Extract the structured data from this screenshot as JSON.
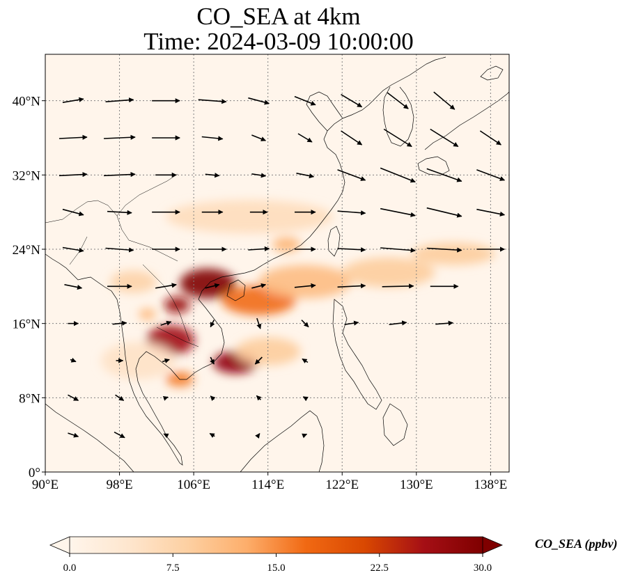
{
  "title": {
    "line1": "CO_SEA at 4km",
    "line2": "Time: 2024-03-09 10:00:00"
  },
  "map": {
    "lon_range": [
      90,
      140
    ],
    "lat_range": [
      0,
      45
    ],
    "x_ticks": [
      {
        "value": 90,
        "label": "90°E"
      },
      {
        "value": 98,
        "label": "98°E"
      },
      {
        "value": 106,
        "label": "106°E"
      },
      {
        "value": 114,
        "label": "114°E"
      },
      {
        "value": 122,
        "label": "122°E"
      },
      {
        "value": 130,
        "label": "130°E"
      },
      {
        "value": 138,
        "label": "138°E"
      }
    ],
    "y_ticks": [
      {
        "value": 0,
        "label": "0°"
      },
      {
        "value": 8,
        "label": "8°N"
      },
      {
        "value": 16,
        "label": "16°N"
      },
      {
        "value": 24,
        "label": "24°N"
      },
      {
        "value": 32,
        "label": "32°N"
      },
      {
        "value": 40,
        "label": "40°N"
      }
    ],
    "gridlines": true,
    "field_variable": "CO_SEA",
    "plumes": [
      {
        "lon": 107.5,
        "lat": 20.3,
        "value": 30,
        "rlon": 3.0,
        "rlat": 1.6
      },
      {
        "lon": 104.2,
        "lat": 18.0,
        "value": 27,
        "rlon": 1.4,
        "rlat": 0.9
      },
      {
        "lon": 103.5,
        "lat": 14.2,
        "value": 26,
        "rlon": 2.6,
        "rlat": 1.6
      },
      {
        "lon": 110.5,
        "lat": 11.8,
        "value": 28,
        "rlon": 2.4,
        "rlat": 1.2
      },
      {
        "lon": 113.0,
        "lat": 18.5,
        "value": 17,
        "rlon": 4.0,
        "rlat": 1.6
      },
      {
        "lon": 118.0,
        "lat": 20.5,
        "value": 11,
        "rlon": 5.0,
        "rlat": 1.8
      },
      {
        "lon": 127.0,
        "lat": 21.5,
        "value": 9,
        "rlon": 5.0,
        "rlat": 1.6
      },
      {
        "lon": 134.0,
        "lat": 23.5,
        "value": 9,
        "rlon": 4.5,
        "rlat": 1.2
      },
      {
        "lon": 116.0,
        "lat": 24.5,
        "value": 12,
        "rlon": 1.5,
        "rlat": 0.8
      },
      {
        "lon": 112.0,
        "lat": 27.5,
        "value": 6,
        "rlon": 9.0,
        "rlat": 1.8
      },
      {
        "lon": 99.5,
        "lat": 20.5,
        "value": 8,
        "rlon": 2.5,
        "rlat": 1.2
      },
      {
        "lon": 101.0,
        "lat": 17.0,
        "value": 12,
        "rlon": 0.9,
        "rlat": 0.6
      },
      {
        "lon": 104.5,
        "lat": 10.0,
        "value": 16,
        "rlon": 1.5,
        "rlat": 0.8
      },
      {
        "lon": 114.0,
        "lat": 13.0,
        "value": 9,
        "rlon": 3.5,
        "rlat": 1.5
      },
      {
        "lon": 100.0,
        "lat": 12.0,
        "value": 5,
        "rlon": 4.0,
        "rlat": 2.0
      }
    ],
    "wind_vectors": [
      {
        "lon": 93,
        "lat": 40,
        "u": 3,
        "v": 0.5
      },
      {
        "lon": 98,
        "lat": 40,
        "u": 4,
        "v": 0.3
      },
      {
        "lon": 103,
        "lat": 40,
        "u": 4,
        "v": 0
      },
      {
        "lon": 108,
        "lat": 40,
        "u": 4,
        "v": -0.3
      },
      {
        "lon": 113,
        "lat": 40,
        "u": 3,
        "v": -0.8
      },
      {
        "lon": 118,
        "lat": 40,
        "u": 3,
        "v": -1.2
      },
      {
        "lon": 123,
        "lat": 40,
        "u": 3,
        "v": -1.8
      },
      {
        "lon": 128,
        "lat": 40,
        "u": 3,
        "v": -2.3
      },
      {
        "lon": 133,
        "lat": 40,
        "u": 3,
        "v": -2.5
      },
      {
        "lon": 93,
        "lat": 36,
        "u": 4,
        "v": 0.2
      },
      {
        "lon": 98,
        "lat": 36,
        "u": 4.5,
        "v": 0.2
      },
      {
        "lon": 103,
        "lat": 36,
        "u": 4,
        "v": 0
      },
      {
        "lon": 108,
        "lat": 36,
        "u": 3,
        "v": -0.3
      },
      {
        "lon": 113,
        "lat": 36,
        "u": 2,
        "v": -0.8
      },
      {
        "lon": 118,
        "lat": 36,
        "u": 2,
        "v": -1.2
      },
      {
        "lon": 123,
        "lat": 36,
        "u": 3,
        "v": -2
      },
      {
        "lon": 128,
        "lat": 36,
        "u": 4,
        "v": -2.5
      },
      {
        "lon": 133,
        "lat": 36,
        "u": 4,
        "v": -2.5
      },
      {
        "lon": 138,
        "lat": 36,
        "u": 3,
        "v": -2
      },
      {
        "lon": 93,
        "lat": 32,
        "u": 4,
        "v": 0.2
      },
      {
        "lon": 98,
        "lat": 32,
        "u": 4.5,
        "v": 0.2
      },
      {
        "lon": 103,
        "lat": 32,
        "u": 3,
        "v": 0
      },
      {
        "lon": 108,
        "lat": 32,
        "u": 2,
        "v": -0.2
      },
      {
        "lon": 113,
        "lat": 32,
        "u": 2,
        "v": -0.3
      },
      {
        "lon": 118,
        "lat": 32,
        "u": 2.5,
        "v": -0.5
      },
      {
        "lon": 123,
        "lat": 32,
        "u": 4,
        "v": -1.5
      },
      {
        "lon": 128,
        "lat": 32,
        "u": 5,
        "v": -2
      },
      {
        "lon": 133,
        "lat": 32,
        "u": 5,
        "v": -1.8
      },
      {
        "lon": 138,
        "lat": 32,
        "u": 4,
        "v": -1.5
      },
      {
        "lon": 93,
        "lat": 28,
        "u": 3,
        "v": -0.8
      },
      {
        "lon": 98,
        "lat": 28,
        "u": 3.5,
        "v": -0.2
      },
      {
        "lon": 103,
        "lat": 28,
        "u": 4,
        "v": 0
      },
      {
        "lon": 108,
        "lat": 28,
        "u": 3,
        "v": 0
      },
      {
        "lon": 113,
        "lat": 28,
        "u": 2.5,
        "v": 0
      },
      {
        "lon": 118,
        "lat": 28,
        "u": 3,
        "v": 0
      },
      {
        "lon": 123,
        "lat": 28,
        "u": 4,
        "v": -0.3
      },
      {
        "lon": 128,
        "lat": 28,
        "u": 5,
        "v": -1
      },
      {
        "lon": 133,
        "lat": 28,
        "u": 5,
        "v": -1.2
      },
      {
        "lon": 138,
        "lat": 28,
        "u": 4,
        "v": -0.8
      },
      {
        "lon": 93,
        "lat": 24,
        "u": 3,
        "v": -0.5
      },
      {
        "lon": 98,
        "lat": 24,
        "u": 4,
        "v": -0.3
      },
      {
        "lon": 103,
        "lat": 24,
        "u": 4,
        "v": 0
      },
      {
        "lon": 108,
        "lat": 24,
        "u": 4,
        "v": 0
      },
      {
        "lon": 113,
        "lat": 24,
        "u": 3,
        "v": 0.2
      },
      {
        "lon": 118,
        "lat": 24,
        "u": 3,
        "v": 0
      },
      {
        "lon": 123,
        "lat": 24,
        "u": 4,
        "v": -0.2
      },
      {
        "lon": 128,
        "lat": 24,
        "u": 5,
        "v": -0.4
      },
      {
        "lon": 133,
        "lat": 24,
        "u": 5,
        "v": -0.3
      },
      {
        "lon": 138,
        "lat": 24,
        "u": 4,
        "v": 0
      },
      {
        "lon": 93,
        "lat": 20,
        "u": 2.5,
        "v": -0.5
      },
      {
        "lon": 98,
        "lat": 20,
        "u": 3.5,
        "v": 0
      },
      {
        "lon": 103,
        "lat": 20,
        "u": 3,
        "v": 0.5
      },
      {
        "lon": 108,
        "lat": 20,
        "u": 2,
        "v": 0.5
      },
      {
        "lon": 113,
        "lat": 20,
        "u": 2,
        "v": 0.5
      },
      {
        "lon": 118,
        "lat": 20,
        "u": 3,
        "v": 0.3
      },
      {
        "lon": 123,
        "lat": 20,
        "u": 4,
        "v": 0.2
      },
      {
        "lon": 128,
        "lat": 20,
        "u": 4.5,
        "v": 0.1
      },
      {
        "lon": 133,
        "lat": 20,
        "u": 4,
        "v": 0
      },
      {
        "lon": 93,
        "lat": 16,
        "u": 1.5,
        "v": 0
      },
      {
        "lon": 98,
        "lat": 16,
        "u": 2,
        "v": 0.2
      },
      {
        "lon": 103,
        "lat": 16,
        "u": 1.5,
        "v": 0.5
      },
      {
        "lon": 108,
        "lat": 16,
        "u": -0.5,
        "v": -1
      },
      {
        "lon": 113,
        "lat": 16,
        "u": 0.5,
        "v": -1.5
      },
      {
        "lon": 118,
        "lat": 16,
        "u": 1,
        "v": -1
      },
      {
        "lon": 123,
        "lat": 16,
        "u": 2,
        "v": 0.3
      },
      {
        "lon": 128,
        "lat": 16,
        "u": 2.5,
        "v": 0.3
      },
      {
        "lon": 133,
        "lat": 16,
        "u": 2.5,
        "v": 0.2
      },
      {
        "lon": 93,
        "lat": 12,
        "u": 0.8,
        "v": -0.3
      },
      {
        "lon": 98,
        "lat": 12,
        "u": 1,
        "v": 0
      },
      {
        "lon": 103,
        "lat": 12,
        "u": 1,
        "v": 0.3
      },
      {
        "lon": 108,
        "lat": 12,
        "u": 0.5,
        "v": -1
      },
      {
        "lon": 113,
        "lat": 12,
        "u": -1,
        "v": -1
      },
      {
        "lon": 118,
        "lat": 12,
        "u": -0.8,
        "v": 0.5
      },
      {
        "lon": 93,
        "lat": 8,
        "u": 1.5,
        "v": -0.8
      },
      {
        "lon": 98,
        "lat": 8,
        "u": 1.2,
        "v": -0.8
      },
      {
        "lon": 103,
        "lat": 8,
        "u": 0.6,
        "v": 0.2
      },
      {
        "lon": 108,
        "lat": 8,
        "u": -0.5,
        "v": 0.5
      },
      {
        "lon": 113,
        "lat": 8,
        "u": -0.6,
        "v": 0.6
      },
      {
        "lon": 118,
        "lat": 8,
        "u": -0.5,
        "v": 0.3
      },
      {
        "lon": 93,
        "lat": 4,
        "u": 1.5,
        "v": -0.5
      },
      {
        "lon": 98,
        "lat": 4,
        "u": 1.5,
        "v": -0.8
      },
      {
        "lon": 103,
        "lat": 4,
        "u": -0.6,
        "v": 0.3
      },
      {
        "lon": 108,
        "lat": 4,
        "u": -0.7,
        "v": 0.4
      },
      {
        "lon": 113,
        "lat": 4,
        "u": 0.3,
        "v": 0.4
      },
      {
        "lon": 118,
        "lat": 4,
        "u": 0.5,
        "v": 0.2
      }
    ]
  },
  "colorbar": {
    "label": "CO_SEA (ppbv)",
    "min": 0,
    "max": 30,
    "ticks": [
      "0.0",
      "7.5",
      "15.0",
      "22.5",
      "30.0"
    ],
    "extend": "both",
    "colors": [
      "#fff5eb",
      "#fee6ce",
      "#fdd0a2",
      "#fdae6b",
      "#f16913",
      "#d94801",
      "#a50f15",
      "#7f0000"
    ]
  }
}
